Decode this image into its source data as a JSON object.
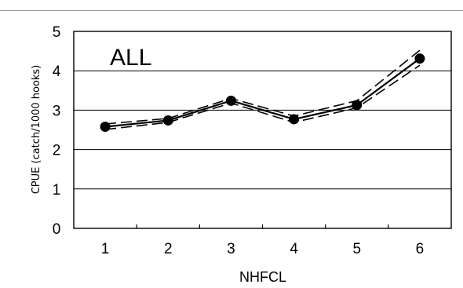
{
  "chart_data": {
    "type": "line",
    "panel_label": "ALL",
    "xlabel": "NHFCL",
    "ylabel": "CPUE (catch/1000 hooks)",
    "x": [
      1,
      2,
      3,
      4,
      5,
      6
    ],
    "x_tick_labels": [
      "1",
      "2",
      "3",
      "4",
      "5",
      "6"
    ],
    "y_tick_labels": [
      "0",
      "1",
      "2",
      "3",
      "4",
      "5"
    ],
    "ylim": [
      0,
      5
    ],
    "grid": "horizontal",
    "legend": "none",
    "series": [
      {
        "role": "estimate",
        "style": "solid",
        "marker": "circle",
        "values": [
          2.58,
          2.74,
          3.24,
          2.77,
          3.13,
          4.31
        ]
      },
      {
        "role": "upper",
        "style": "dashed",
        "values": [
          2.65,
          2.79,
          3.3,
          2.85,
          3.24,
          4.52
        ]
      },
      {
        "role": "lower",
        "style": "dashed",
        "values": [
          2.51,
          2.69,
          3.18,
          2.69,
          3.06,
          4.14
        ]
      }
    ],
    "colors": {
      "line": "#000000",
      "grid": "#000000",
      "background": "#ffffff"
    }
  }
}
